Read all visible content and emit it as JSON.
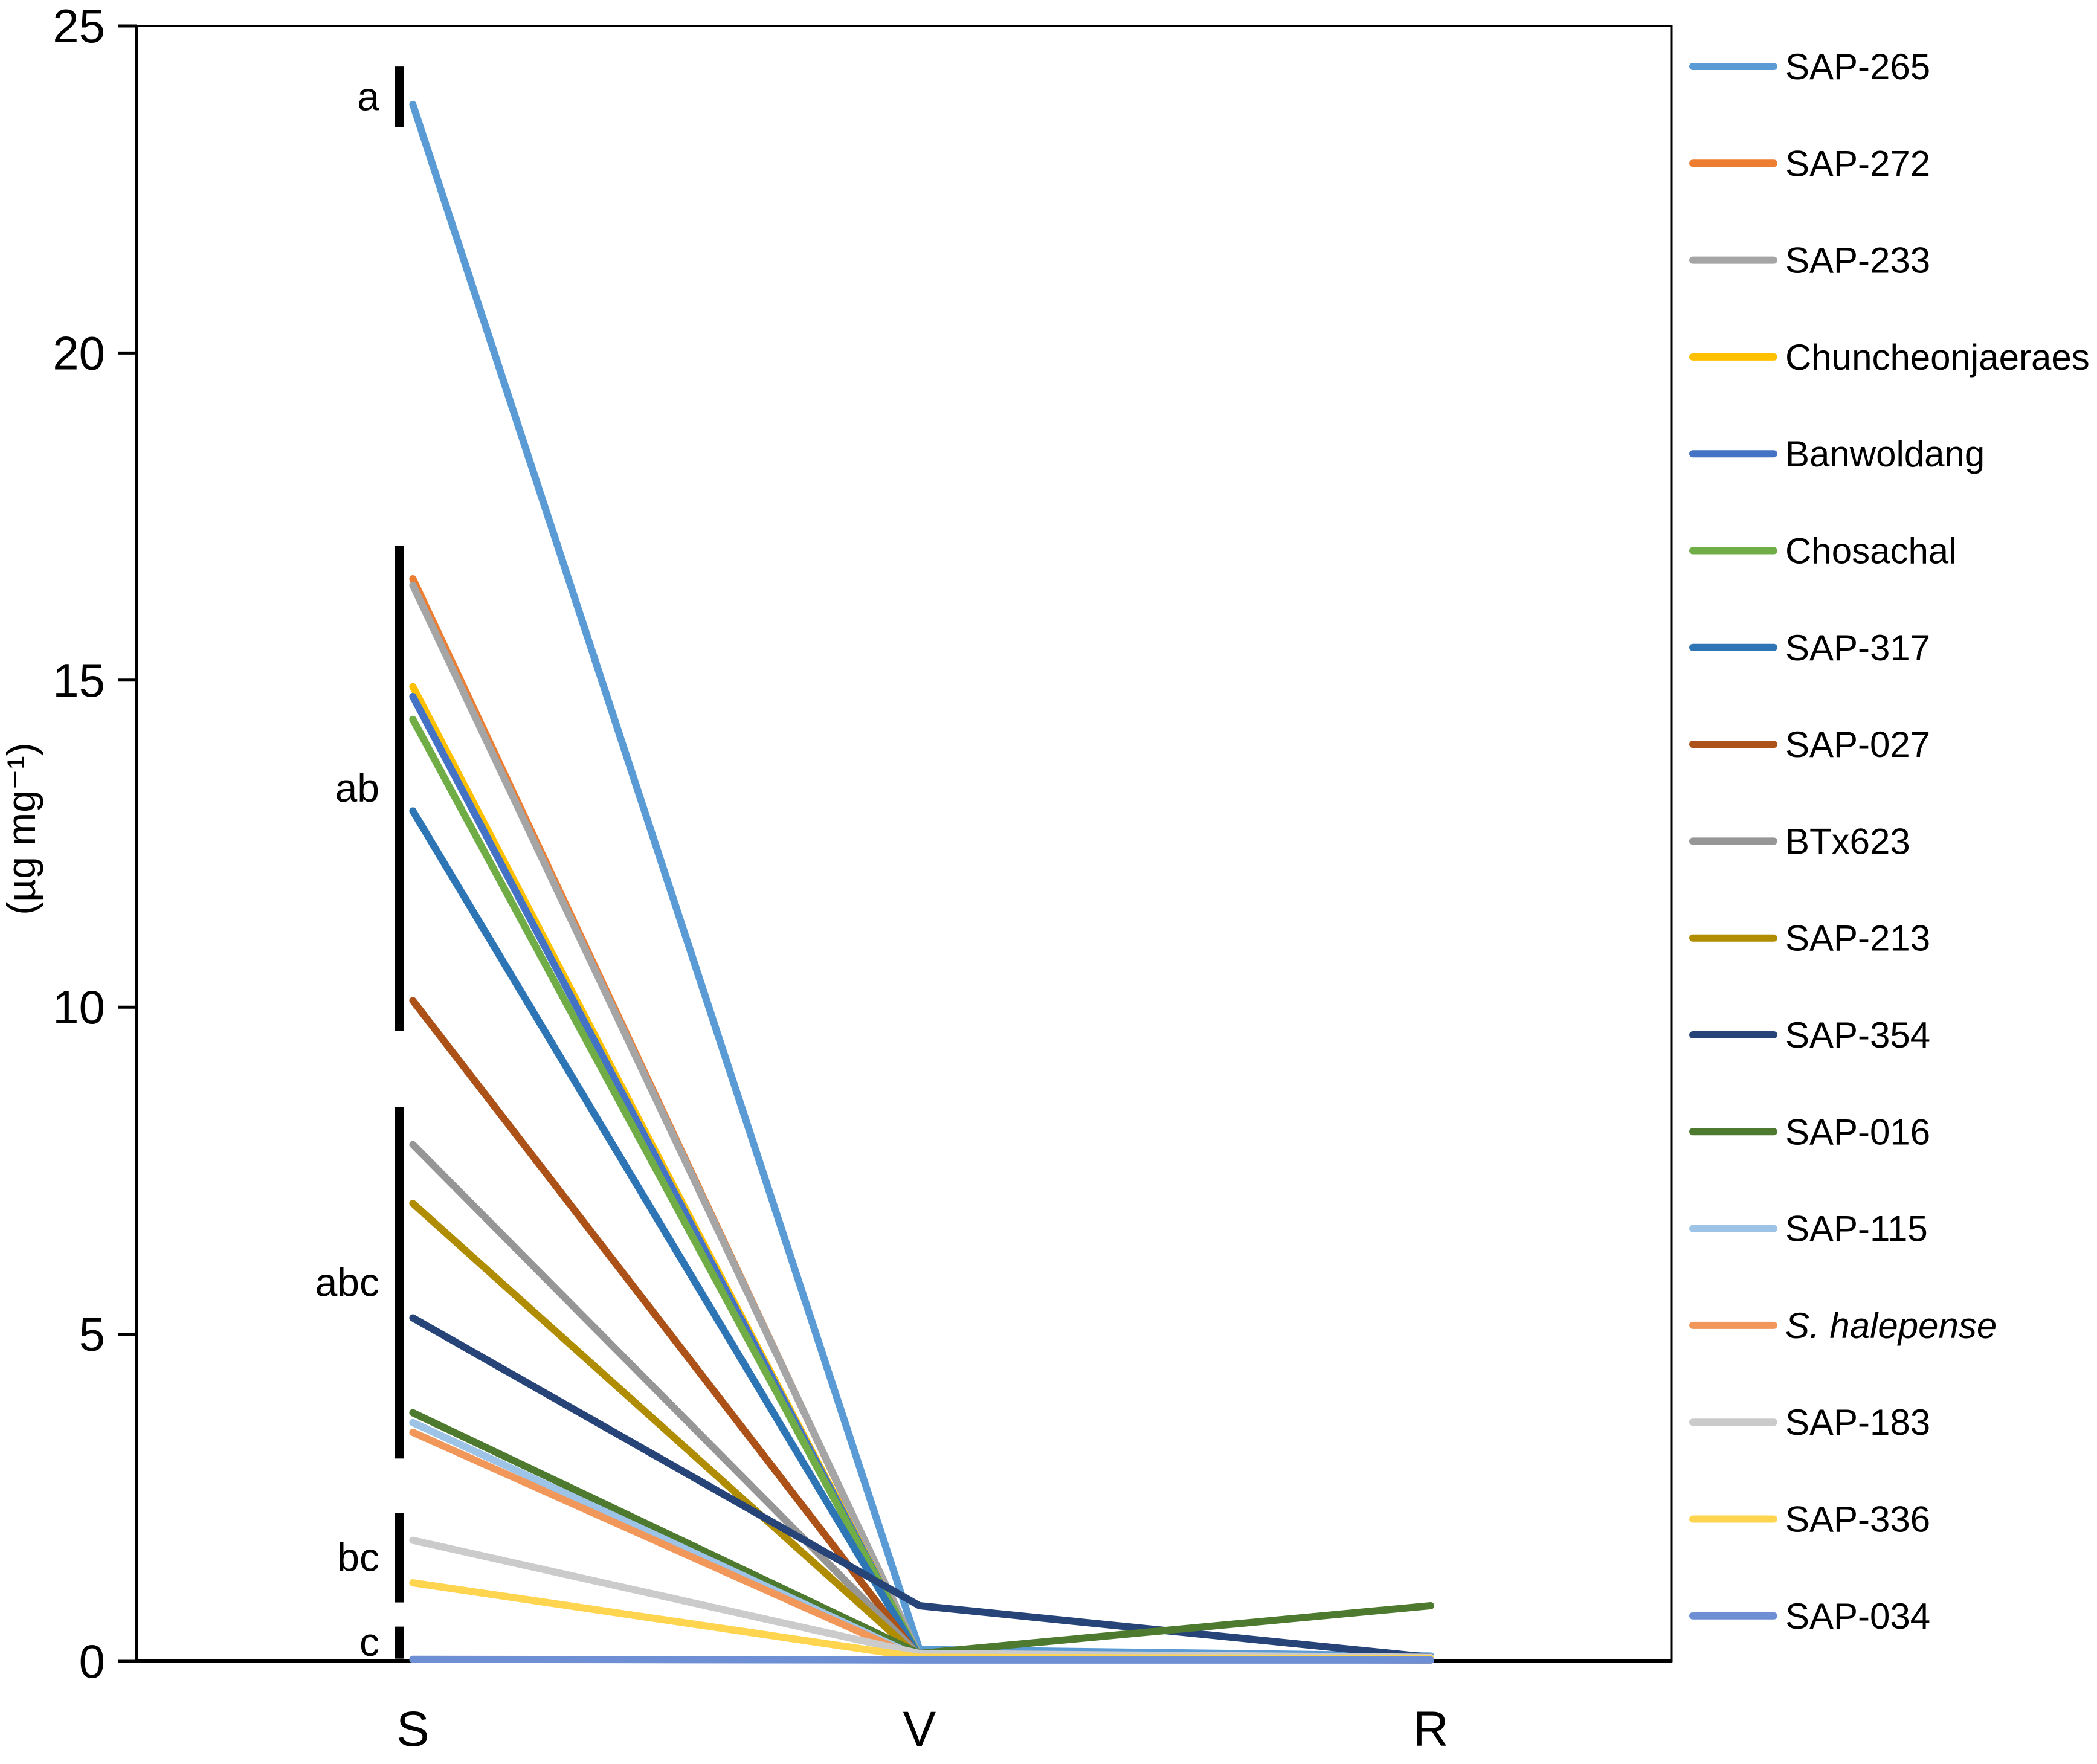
{
  "figure_type": "line-chart-figure",
  "axes": {
    "y": {
      "title": "(µg mg⁻¹)",
      "ticks": [
        0,
        5,
        10,
        15,
        20,
        25
      ],
      "min": 0,
      "max": 25
    },
    "x": {
      "categories": [
        "S",
        "V",
        "R"
      ]
    }
  },
  "significance_bars": [
    {
      "label": "a",
      "from": 23.45,
      "to": 24.38
    },
    {
      "label": "ab",
      "from": 9.64,
      "to": 17.05
    },
    {
      "label": "abc",
      "from": 3.1,
      "to": 8.47
    },
    {
      "label": "bc",
      "from": 0.9,
      "to": 2.27
    },
    {
      "label": "c",
      "from": 0.04,
      "to": 0.53
    }
  ],
  "chart_data": {
    "type": "line",
    "x_categories": [
      "S",
      "V",
      "R"
    ],
    "xlabel": "",
    "ylabel": "(µg mg⁻¹)",
    "ylim": [
      0,
      25
    ],
    "grid": false,
    "legend_position": "right",
    "series": [
      {
        "name": "SAP-265",
        "color": "#5B9BD5",
        "italic": false,
        "values": [
          23.8,
          0.18,
          0.08
        ]
      },
      {
        "name": "SAP-272",
        "color": "#ED7D31",
        "italic": false,
        "values": [
          16.55,
          0.05,
          0.02
        ]
      },
      {
        "name": "SAP-233",
        "color": "#A5A5A5",
        "italic": false,
        "values": [
          16.45,
          0.08,
          0.04
        ]
      },
      {
        "name": "Chuncheonjaeraes",
        "color": "#FFC000",
        "italic": false,
        "values": [
          14.9,
          0.06,
          0.03
        ]
      },
      {
        "name": "Banwoldang",
        "color": "#4472C4",
        "italic": false,
        "values": [
          14.75,
          0.06,
          0.03
        ]
      },
      {
        "name": "Chosachal",
        "color": "#70AD47",
        "italic": false,
        "values": [
          14.4,
          0.07,
          0.03
        ]
      },
      {
        "name": "SAP-317",
        "color": "#2E75B6",
        "italic": false,
        "values": [
          13.0,
          0.07,
          0.03
        ]
      },
      {
        "name": "SAP-027",
        "color": "#AC5219",
        "italic": false,
        "values": [
          10.1,
          0.06,
          0.03
        ]
      },
      {
        "name": "BTx623",
        "color": "#969696",
        "italic": false,
        "values": [
          7.9,
          0.09,
          0.05
        ]
      },
      {
        "name": "SAP-213",
        "color": "#B08C00",
        "italic": false,
        "values": [
          7.0,
          0.06,
          0.03
        ]
      },
      {
        "name": "SAP-354",
        "color": "#264478",
        "italic": false,
        "values": [
          5.25,
          0.85,
          0.06
        ]
      },
      {
        "name": "SAP-016",
        "color": "#4E7A30",
        "italic": false,
        "values": [
          3.8,
          0.12,
          0.85
        ]
      },
      {
        "name": "SAP-115",
        "color": "#9DC3E6",
        "italic": false,
        "values": [
          3.65,
          0.06,
          0.03
        ]
      },
      {
        "name": "S. halepense",
        "color": "#F1975A",
        "italic": true,
        "values": [
          3.5,
          0.04,
          0.02
        ]
      },
      {
        "name": "SAP-183",
        "color": "#CBCBCB",
        "italic": false,
        "values": [
          1.85,
          0.12,
          0.06
        ]
      },
      {
        "name": "SAP-336",
        "color": "#FFD54F",
        "italic": false,
        "values": [
          1.2,
          0.06,
          0.04
        ]
      },
      {
        "name": "SAP-034",
        "color": "#6E8FD4",
        "italic": false,
        "values": [
          0.03,
          0.02,
          0.02
        ]
      }
    ]
  }
}
